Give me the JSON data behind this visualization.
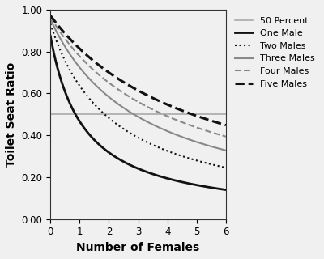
{
  "title": "",
  "xlabel": "Number of Females",
  "ylabel": "Toilet Seat Ratio",
  "xlim": [
    0,
    6
  ],
  "ylim": [
    0.0,
    1.0
  ],
  "xticks": [
    0,
    1,
    2,
    3,
    4,
    5,
    6
  ],
  "yticks": [
    0.0,
    0.2,
    0.4,
    0.6,
    0.8,
    1.0
  ],
  "fifty_percent": 0.5,
  "series": [
    {
      "males": 1,
      "label": "One Male",
      "color": "#111111",
      "lw": 2.0,
      "ls": "solid"
    },
    {
      "males": 2,
      "label": "Two Males",
      "color": "#111111",
      "lw": 1.5,
      "ls": "dotted"
    },
    {
      "males": 3,
      "label": "Three Males",
      "color": "#888888",
      "lw": 1.5,
      "ls": "solid"
    },
    {
      "males": 4,
      "label": "Four Males",
      "color": "#888888",
      "lw": 1.5,
      "ls": "dashed"
    },
    {
      "males": 5,
      "label": "Five Males",
      "color": "#111111",
      "lw": 2.2,
      "ls": "dashed"
    }
  ],
  "fifty_label": "50 Percent",
  "fifty_color": "#aaaaaa",
  "fifty_lw": 1.2,
  "bg_color": "#f0f0f0",
  "legend_fontsize": 8,
  "axis_label_fontsize": 10,
  "tick_fontsize": 8.5,
  "figsize": [
    4.0,
    3.2
  ],
  "dpi": 100
}
